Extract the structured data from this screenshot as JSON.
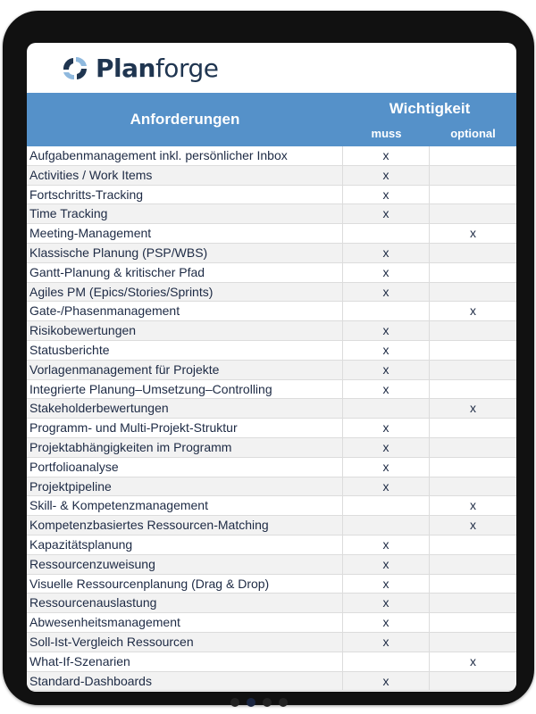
{
  "brand": {
    "name_bold": "Plan",
    "name_light": "forge",
    "logo_colors": [
      "#1f3550",
      "#8fb9de"
    ]
  },
  "header": {
    "requirements": "Anforderungen",
    "importance": "Wichtigkeit",
    "must": "muss",
    "optional": "optional",
    "color": "#5591c9"
  },
  "rows": [
    {
      "label": "Aufgabenmanagement inkl. persönlicher Inbox",
      "muss": "x",
      "optional": ""
    },
    {
      "label": "Activities / Work Items",
      "muss": "x",
      "optional": ""
    },
    {
      "label": "Fortschritts-Tracking",
      "muss": "x",
      "optional": ""
    },
    {
      "label": "Time Tracking",
      "muss": "x",
      "optional": ""
    },
    {
      "label": "Meeting-Management",
      "muss": "",
      "optional": "x"
    },
    {
      "label": "Klassische Planung (PSP/WBS)",
      "muss": "x",
      "optional": ""
    },
    {
      "label": "Gantt-Planung & kritischer Pfad",
      "muss": "x",
      "optional": ""
    },
    {
      "label": "Agiles PM (Epics/Stories/Sprints)",
      "muss": "x",
      "optional": ""
    },
    {
      "label": "Gate-/Phasenmanagement",
      "muss": "",
      "optional": "x"
    },
    {
      "label": "Risikobewertungen",
      "muss": "x",
      "optional": ""
    },
    {
      "label": "Statusberichte",
      "muss": "x",
      "optional": ""
    },
    {
      "label": "Vorlagenmanagement für Projekte",
      "muss": "x",
      "optional": ""
    },
    {
      "label": "Integrierte Planung–Umsetzung–Controlling",
      "muss": "x",
      "optional": ""
    },
    {
      "label": "Stakeholderbewertungen",
      "muss": "",
      "optional": "x"
    },
    {
      "label": "Programm- und Multi-Projekt-Struktur",
      "muss": "x",
      "optional": ""
    },
    {
      "label": "Projektabhängigkeiten im Programm",
      "muss": "x",
      "optional": ""
    },
    {
      "label": "Portfolioanalyse",
      "muss": "x",
      "optional": ""
    },
    {
      "label": "Projektpipeline",
      "muss": "x",
      "optional": ""
    },
    {
      "label": "Skill- & Kompetenzmanagement",
      "muss": "",
      "optional": "x"
    },
    {
      "label": "Kompetenzbasiertes Ressourcen-Matching",
      "muss": "",
      "optional": "x"
    },
    {
      "label": "Kapazitätsplanung",
      "muss": "x",
      "optional": ""
    },
    {
      "label": "Ressourcenzuweisung",
      "muss": "x",
      "optional": ""
    },
    {
      "label": "Visuelle Ressourcenplanung (Drag & Drop)",
      "muss": "x",
      "optional": ""
    },
    {
      "label": "Ressourcenauslastung",
      "muss": "x",
      "optional": ""
    },
    {
      "label": "Abwesenheitsmanagement",
      "muss": "x",
      "optional": ""
    },
    {
      "label": "Soll-Ist-Vergleich Ressourcen",
      "muss": "x",
      "optional": ""
    },
    {
      "label": "What-If-Szenarien",
      "muss": "",
      "optional": "x"
    },
    {
      "label": "Standard-Dashboards",
      "muss": "x",
      "optional": ""
    }
  ]
}
